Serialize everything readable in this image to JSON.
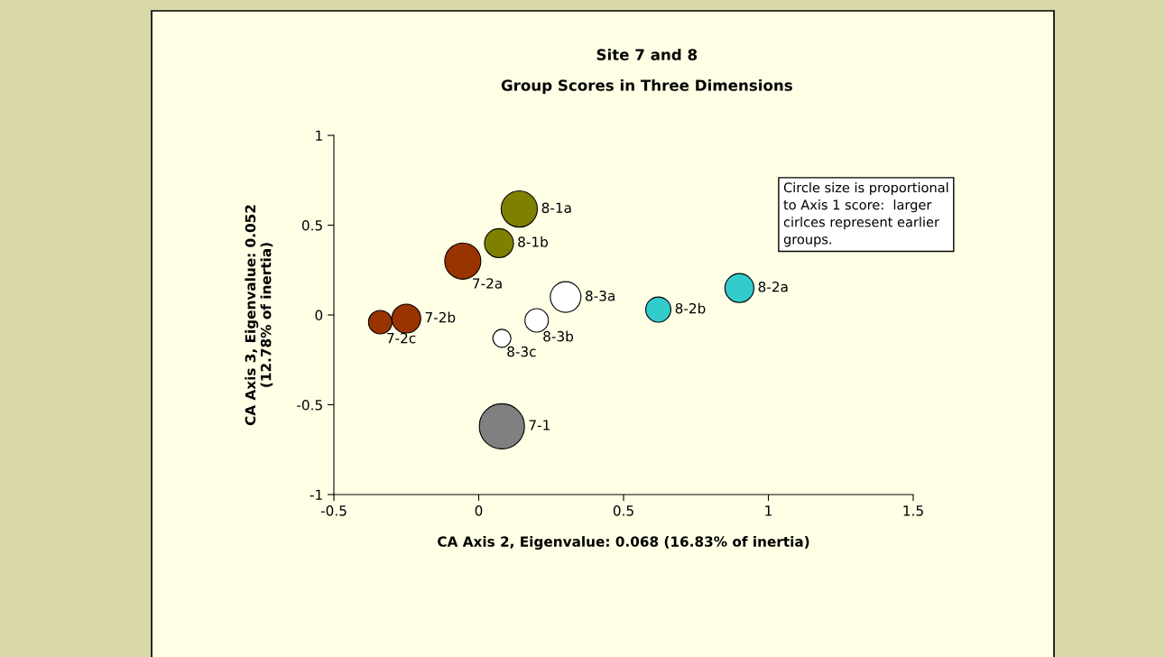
{
  "chart_data": {
    "type": "bubble",
    "title": "Site 7 and 8",
    "subtitle": "Group Scores in Three Dimensions",
    "xlabel": "CA Axis 2, Eigenvalue: 0.068 (16.83% of inertia)",
    "ylabel": "CA Axis 3, Eigenvalue: 0.052\n(12.78% of inertia)",
    "xlim": [
      -0.5,
      1.5
    ],
    "xticks": [
      -0.5,
      0,
      0.5,
      1,
      1.5
    ],
    "ylim": [
      -1,
      1
    ],
    "yticks": [
      -1,
      -0.5,
      0,
      0.5,
      1
    ],
    "grid": false,
    "legend": false,
    "annotations": [
      "Circle size is proportional\nto Axis 1 score:  larger\ncirlces represent earlier\ngroups."
    ],
    "series": [
      {
        "name": "8-1a",
        "color": "#808000",
        "x": [
          0.14
        ],
        "values": [
          0.59
        ],
        "sizes": [
          0.64
        ]
      },
      {
        "name": "8-1b",
        "color": "#808000",
        "x": [
          0.07
        ],
        "values": [
          0.4
        ],
        "sizes": [
          0.41
        ]
      },
      {
        "name": "7-2a",
        "color": "#993300",
        "x": [
          -0.055
        ],
        "values": [
          0.3
        ],
        "sizes": [
          0.64
        ]
      },
      {
        "name": "8-3a",
        "color": "#ffffff",
        "x": [
          0.3
        ],
        "values": [
          0.1
        ],
        "sizes": [
          0.46
        ]
      },
      {
        "name": "8-3b",
        "color": "#ffffff",
        "x": [
          0.2
        ],
        "values": [
          -0.03
        ],
        "sizes": [
          0.27
        ]
      },
      {
        "name": "8-3c",
        "color": "#ffffff",
        "x": [
          0.08
        ],
        "values": [
          -0.13
        ],
        "sizes": [
          0.16
        ]
      },
      {
        "name": "7-2b",
        "color": "#993300",
        "x": [
          -0.25
        ],
        "values": [
          -0.02
        ],
        "sizes": [
          0.41
        ]
      },
      {
        "name": "7-2c",
        "color": "#993300",
        "x": [
          -0.34
        ],
        "values": [
          -0.04
        ],
        "sizes": [
          0.27
        ]
      },
      {
        "name": "8-2b",
        "color": "#33cccc",
        "x": [
          0.62
        ],
        "values": [
          0.03
        ],
        "sizes": [
          0.31
        ]
      },
      {
        "name": "8-2a",
        "color": "#33cccc",
        "x": [
          0.9
        ],
        "values": [
          0.15
        ],
        "sizes": [
          0.41
        ]
      },
      {
        "name": "7-1",
        "color": "#808080",
        "x": [
          0.08
        ],
        "values": [
          -0.62
        ],
        "sizes": [
          1
        ]
      }
    ]
  }
}
